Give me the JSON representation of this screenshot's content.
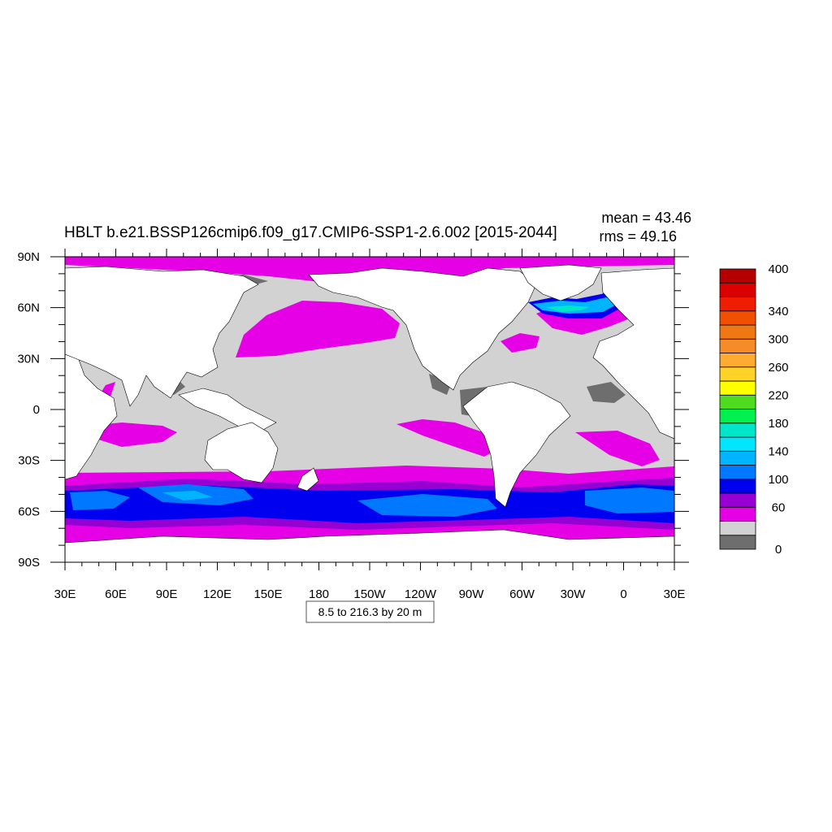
{
  "title": "HBLT b.e21.BSSP126cmip6.f09_g17.CMIP6-SSP1-2.6.002 [2015-2044]",
  "stats": {
    "mean": "mean = 43.46",
    "rms": "rms = 49.16"
  },
  "contour_info": "8.5 to 216.3 by 20 m",
  "map": {
    "projection": "cylindrical equidistant",
    "center_longitude": "210E",
    "lon_labels": [
      "30E",
      "60E",
      "90E",
      "120E",
      "150E",
      "180",
      "150W",
      "120W",
      "90W",
      "60W",
      "30W",
      "0",
      "30E"
    ],
    "lat_labels": [
      "90N",
      "60N",
      "30N",
      "0",
      "30S",
      "60S",
      "90S"
    ]
  },
  "colorbar": {
    "labels": [
      "400",
      "340",
      "300",
      "260",
      "220",
      "180",
      "140",
      "100",
      "60",
      "0"
    ],
    "levels": [
      0,
      20,
      40,
      60,
      80,
      100,
      120,
      140,
      160,
      180,
      200,
      220,
      240,
      260,
      280,
      300,
      320,
      340,
      360,
      380,
      400
    ],
    "colors": [
      "#6e6e6e",
      "#d2d2d2",
      "#e600e6",
      "#9600d2",
      "#0000f0",
      "#0078ff",
      "#00b4ff",
      "#00e6ff",
      "#00e6c8",
      "#00f050",
      "#50dc1e",
      "#ffff00",
      "#ffd228",
      "#ffaa32",
      "#f58c28",
      "#f07814",
      "#f05000",
      "#f01e00",
      "#dc0000",
      "#b40000"
    ]
  },
  "colors": {
    "land": "#ffffff",
    "ocean_default": "#d2d2d2",
    "coastline": "#000000"
  }
}
